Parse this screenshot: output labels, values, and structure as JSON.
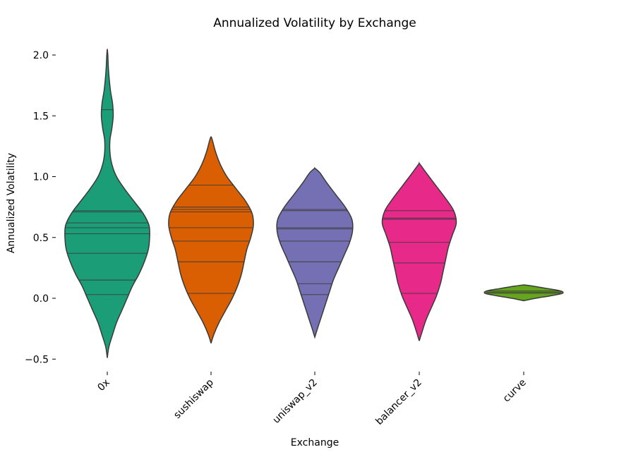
{
  "chart_data": {
    "type": "violin",
    "title": "Annualized Volatility by Exchange",
    "xlabel": "Exchange",
    "ylabel": "Annualized Volatility",
    "ylim": [
      -0.55,
      2.1
    ],
    "yticks": [
      {
        "value": 2.0,
        "label": "2.0"
      },
      {
        "value": 1.5,
        "label": "1.5"
      },
      {
        "value": 1.0,
        "label": "1.0"
      },
      {
        "value": 0.5,
        "label": "0.5"
      },
      {
        "value": 0.0,
        "label": "0.0"
      },
      {
        "value": -0.5,
        "label": "−0.5"
      }
    ],
    "grid": false,
    "inner": "stick",
    "categories": [
      "0x",
      "sushiswap",
      "uniswap_v2",
      "balancer_v2",
      "curve"
    ],
    "series": [
      {
        "category": "0x",
        "color": "#1b9e77",
        "profile": [
          [
            -0.49,
            0
          ],
          [
            -0.4,
            0.012
          ],
          [
            -0.3,
            0.04
          ],
          [
            -0.2,
            0.07
          ],
          [
            -0.1,
            0.11
          ],
          [
            0,
            0.15
          ],
          [
            0.1,
            0.19
          ],
          [
            0.2,
            0.24
          ],
          [
            0.3,
            0.28
          ],
          [
            0.4,
            0.31
          ],
          [
            0.5,
            0.32
          ],
          [
            0.6,
            0.315
          ],
          [
            0.7,
            0.27
          ],
          [
            0.8,
            0.2
          ],
          [
            0.9,
            0.13
          ],
          [
            1.0,
            0.07
          ],
          [
            1.1,
            0.035
          ],
          [
            1.2,
            0.02
          ],
          [
            1.3,
            0.02
          ],
          [
            1.4,
            0.035
          ],
          [
            1.5,
            0.045
          ],
          [
            1.6,
            0.04
          ],
          [
            1.7,
            0.025
          ],
          [
            1.8,
            0.015
          ],
          [
            1.9,
            0.008
          ],
          [
            2.0,
            0.004
          ],
          [
            2.05,
            0
          ]
        ],
        "sticks": [
          1.55,
          0.72,
          0.71,
          0.62,
          0.58,
          0.53,
          0.37,
          0.15,
          0.03
        ]
      },
      {
        "category": "sushiswap",
        "color": "#d95f02",
        "profile": [
          [
            -0.37,
            0
          ],
          [
            -0.3,
            0.02
          ],
          [
            -0.2,
            0.06
          ],
          [
            -0.1,
            0.11
          ],
          [
            0,
            0.16
          ],
          [
            0.1,
            0.2
          ],
          [
            0.2,
            0.23
          ],
          [
            0.3,
            0.25
          ],
          [
            0.4,
            0.27
          ],
          [
            0.5,
            0.3
          ],
          [
            0.6,
            0.32
          ],
          [
            0.7,
            0.31
          ],
          [
            0.8,
            0.26
          ],
          [
            0.9,
            0.19
          ],
          [
            1.0,
            0.12
          ],
          [
            1.1,
            0.07
          ],
          [
            1.2,
            0.035
          ],
          [
            1.3,
            0.01
          ],
          [
            1.33,
            0
          ]
        ],
        "sticks": [
          0.93,
          0.75,
          0.73,
          0.71,
          0.58,
          0.47,
          0.3,
          0.04
        ]
      },
      {
        "category": "uniswap_v2",
        "color": "#7570b3",
        "profile": [
          [
            -0.32,
            0
          ],
          [
            -0.25,
            0.02
          ],
          [
            -0.15,
            0.05
          ],
          [
            -0.05,
            0.08
          ],
          [
            0.05,
            0.11
          ],
          [
            0.15,
            0.14
          ],
          [
            0.25,
            0.18
          ],
          [
            0.35,
            0.22
          ],
          [
            0.45,
            0.26
          ],
          [
            0.55,
            0.285
          ],
          [
            0.65,
            0.28
          ],
          [
            0.75,
            0.23
          ],
          [
            0.85,
            0.16
          ],
          [
            0.95,
            0.09
          ],
          [
            1.03,
            0.04
          ],
          [
            1.07,
            0
          ]
        ],
        "sticks": [
          0.73,
          0.72,
          0.58,
          0.57,
          0.47,
          0.3,
          0.12,
          0.03
        ]
      },
      {
        "category": "balancer_v2",
        "color": "#e7298a",
        "profile": [
          [
            -0.35,
            0
          ],
          [
            -0.28,
            0.02
          ],
          [
            -0.18,
            0.05
          ],
          [
            -0.08,
            0.09
          ],
          [
            0.02,
            0.13
          ],
          [
            0.12,
            0.16
          ],
          [
            0.22,
            0.18
          ],
          [
            0.32,
            0.2
          ],
          [
            0.42,
            0.22
          ],
          [
            0.52,
            0.25
          ],
          [
            0.62,
            0.28
          ],
          [
            0.72,
            0.26
          ],
          [
            0.82,
            0.2
          ],
          [
            0.92,
            0.13
          ],
          [
            1.02,
            0.06
          ],
          [
            1.08,
            0.02
          ],
          [
            1.11,
            0
          ]
        ],
        "sticks": [
          0.72,
          0.66,
          0.65,
          0.46,
          0.29,
          0.04
        ]
      },
      {
        "category": "curve",
        "color": "#66a61e",
        "profile": [
          [
            -0.02,
            0
          ],
          [
            0.0,
            0.09
          ],
          [
            0.02,
            0.2
          ],
          [
            0.04,
            0.29
          ],
          [
            0.06,
            0.28
          ],
          [
            0.08,
            0.18
          ],
          [
            0.1,
            0.07
          ],
          [
            0.11,
            0
          ]
        ],
        "sticks": [
          0.06,
          0.05,
          0.04
        ]
      }
    ]
  }
}
